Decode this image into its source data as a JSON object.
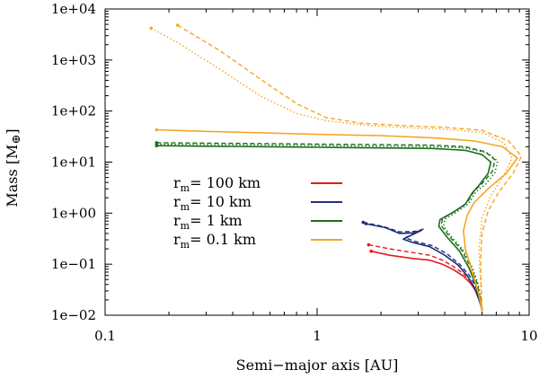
{
  "chart_data": {
    "type": "line",
    "title": "",
    "xlabel": "Semi−major axis [AU]",
    "ylabel": "Mass [M⊕]",
    "ylabel_main": "Mass [M",
    "ylabel_symbol": "⊕",
    "ylabel_close": "]",
    "xscale": "log",
    "yscale": "log",
    "xlim": [
      0.1,
      10
    ],
    "ylim": [
      0.01,
      10000
    ],
    "x_ticks": [
      {
        "value": 0.1,
        "label": "0.1"
      },
      {
        "value": 1,
        "label": "1"
      },
      {
        "value": 10,
        "label": "10"
      }
    ],
    "y_ticks": [
      {
        "value": 0.01,
        "label": "1e−02"
      },
      {
        "value": 0.1,
        "label": "1e−01"
      },
      {
        "value": 1,
        "label": "1e+00"
      },
      {
        "value": 10,
        "label": "1e+01"
      },
      {
        "value": 100,
        "label": "1e+02"
      },
      {
        "value": 1000,
        "label": "1e+03"
      },
      {
        "value": 10000,
        "label": "1e+04"
      }
    ],
    "legend": {
      "placement": "center-left",
      "prefix": "r",
      "subscript": "m",
      "entries": [
        {
          "value_text": "= 100 km",
          "color": "#e41a1c"
        },
        {
          "value_text": "= 10 km",
          "color": "#1f2f7a"
        },
        {
          "value_text": "= 1 km",
          "color": "#1b6e1b"
        },
        {
          "value_text": "= 0.1 km",
          "color": "#f5a623"
        }
      ]
    },
    "series": [
      {
        "name": "r_m = 100 km (solid)",
        "color": "#e41a1c",
        "style": "solid",
        "x": [
          1.8,
          2.2,
          2.8,
          3.4,
          3.9,
          4.4,
          4.9,
          5.3,
          5.6,
          5.9,
          6.0
        ],
        "y": [
          0.18,
          0.15,
          0.13,
          0.12,
          0.1,
          0.078,
          0.058,
          0.042,
          0.03,
          0.02,
          0.013
        ]
      },
      {
        "name": "r_m = 100 km (dashed)",
        "color": "#e41a1c",
        "style": "dashed",
        "x": [
          1.75,
          2.2,
          2.8,
          3.4,
          3.9,
          4.4,
          4.9,
          5.3,
          5.6,
          5.9,
          6.0
        ],
        "y": [
          0.24,
          0.2,
          0.17,
          0.15,
          0.12,
          0.09,
          0.065,
          0.046,
          0.032,
          0.021,
          0.013
        ]
      },
      {
        "name": "r_m = 10 km (solid)",
        "color": "#1f2f7a",
        "style": "solid",
        "x": [
          1.7,
          2.1,
          2.45,
          2.85,
          3.1,
          2.9,
          2.55,
          2.8,
          3.4,
          4.0,
          4.6,
          5.1,
          5.5,
          5.8,
          6.0
        ],
        "y": [
          0.62,
          0.52,
          0.4,
          0.41,
          0.46,
          0.4,
          0.31,
          0.27,
          0.22,
          0.15,
          0.098,
          0.06,
          0.036,
          0.02,
          0.013
        ]
      },
      {
        "name": "r_m = 10 km (dashed)",
        "color": "#1f2f7a",
        "style": "dashed",
        "x": [
          1.65,
          2.05,
          2.45,
          2.9,
          3.2,
          3.0,
          2.6,
          2.9,
          3.5,
          4.1,
          4.7,
          5.2,
          5.6,
          5.85,
          6.0
        ],
        "y": [
          0.66,
          0.55,
          0.43,
          0.44,
          0.49,
          0.43,
          0.33,
          0.28,
          0.23,
          0.16,
          0.1,
          0.062,
          0.037,
          0.021,
          0.013
        ]
      },
      {
        "name": "r_m = 1 km (solid)",
        "color": "#1b6e1b",
        "style": "solid",
        "x": [
          0.175,
          0.3,
          0.6,
          1.0,
          2.0,
          3.5,
          5.0,
          6.0,
          6.6,
          6.4,
          5.8,
          5.4,
          5.0,
          4.4,
          3.8,
          3.75,
          4.1,
          4.7,
          5.2,
          5.6,
          5.85,
          6.0
        ],
        "y": [
          21,
          20.5,
          20,
          19.5,
          19,
          18.5,
          17,
          14,
          10,
          6,
          3.5,
          2.5,
          1.5,
          1.05,
          0.75,
          0.55,
          0.34,
          0.18,
          0.085,
          0.04,
          0.02,
          0.012
        ]
      },
      {
        "name": "r_m = 1 km (dashed)",
        "color": "#1b6e1b",
        "style": "dashed",
        "x": [
          0.175,
          0.3,
          0.6,
          1.0,
          2.0,
          3.5,
          5.0,
          6.2,
          6.9,
          6.7,
          6.0,
          5.5,
          5.1,
          4.5,
          3.9,
          3.85,
          4.2,
          4.8,
          5.3,
          5.7,
          5.9,
          6.0
        ],
        "y": [
          24,
          23.5,
          23,
          22.5,
          22,
          21.5,
          20,
          16,
          11,
          6.5,
          3.8,
          2.7,
          1.6,
          1.1,
          0.78,
          0.57,
          0.35,
          0.19,
          0.088,
          0.041,
          0.02,
          0.012
        ]
      },
      {
        "name": "r_m = 1 km (dotted)",
        "color": "#1b6e1b",
        "style": "dotted",
        "x": [
          0.175,
          0.3,
          0.6,
          1.0,
          2.0,
          3.5,
          5.0,
          6.4,
          7.1,
          6.9,
          6.2,
          5.6,
          5.2,
          4.6,
          4.0,
          3.95,
          4.3,
          4.9,
          5.4,
          5.75,
          5.9,
          6.0
        ],
        "y": [
          22.5,
          22,
          21.5,
          21,
          20.5,
          20,
          19,
          15,
          10.5,
          6.2,
          3.6,
          2.6,
          1.55,
          1.08,
          0.76,
          0.56,
          0.345,
          0.185,
          0.087,
          0.04,
          0.02,
          0.012
        ]
      },
      {
        "name": "r_m = 0.1 km (solid)",
        "color": "#f5a623",
        "style": "solid",
        "x": [
          0.175,
          0.3,
          0.6,
          1.0,
          2.0,
          3.5,
          5.5,
          7.5,
          8.8,
          7.8,
          6.4,
          5.5,
          5.1,
          4.9,
          5.0,
          5.4,
          5.8,
          6.0
        ],
        "y": [
          43,
          40,
          37,
          35,
          33,
          30,
          26,
          20,
          12,
          6,
          3,
          1.6,
          0.9,
          0.45,
          0.2,
          0.07,
          0.025,
          0.012
        ]
      },
      {
        "name": "r_m = 0.1 km (dashed)",
        "color": "#f5a623",
        "style": "dashed",
        "x": [
          0.22,
          0.35,
          0.55,
          0.8,
          1.1,
          1.6,
          2.5,
          4.0,
          6.0,
          8.0,
          9.2,
          8.4,
          7.2,
          6.4,
          6.0,
          5.9,
          5.95,
          6.0
        ],
        "y": [
          4800,
          1500,
          400,
          140,
          75,
          58,
          52,
          48,
          42,
          26,
          13,
          6,
          2.6,
          1.1,
          0.4,
          0.12,
          0.035,
          0.012
        ]
      },
      {
        "name": "r_m = 0.1 km (dotted)",
        "color": "#f5a623",
        "style": "dotted",
        "x": [
          0.165,
          0.22,
          0.35,
          0.55,
          0.8,
          1.1,
          1.6,
          2.5,
          4.0,
          6.0,
          7.6,
          8.3,
          7.6,
          6.6,
          6.0,
          5.8,
          5.9,
          6.0
        ],
        "y": [
          4200,
          2200,
          650,
          190,
          90,
          65,
          54,
          48,
          44,
          38,
          24,
          12,
          5.5,
          2.2,
          0.8,
          0.2,
          0.04,
          0.012
        ]
      }
    ]
  }
}
